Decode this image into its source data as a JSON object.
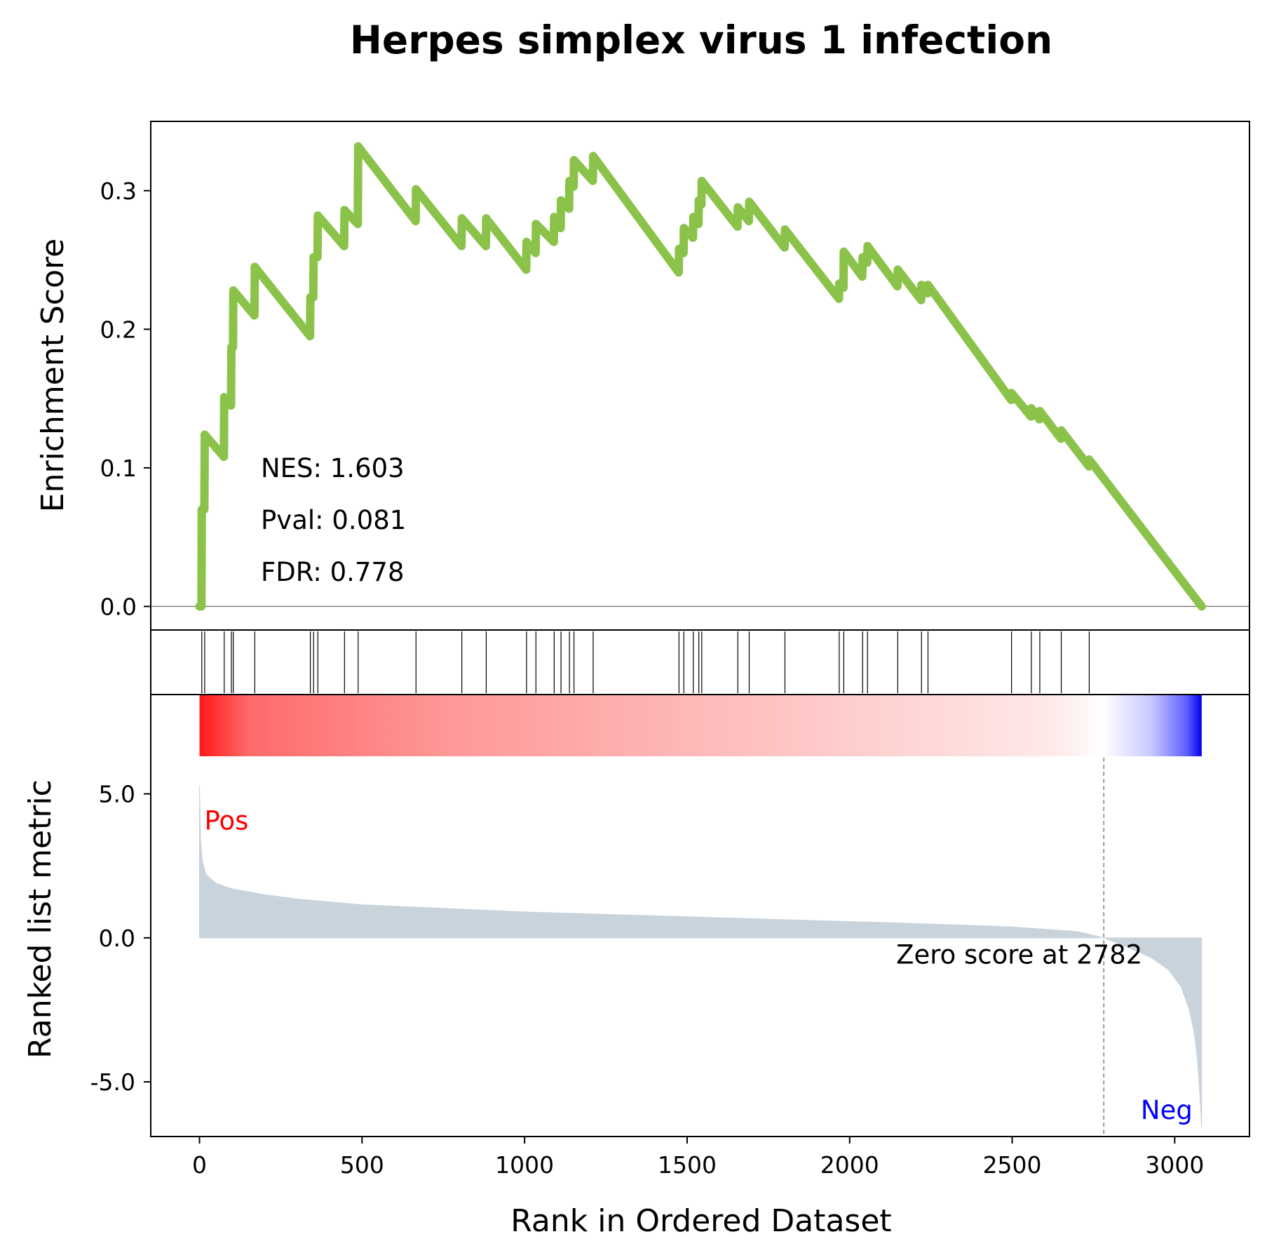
{
  "chart_data": {
    "type": "line",
    "title": "Herpes simplex virus 1 infection",
    "xlabel": "Rank in Ordered Dataset",
    "xlim": [
      -150,
      3230
    ],
    "xticks": [
      0,
      500,
      1000,
      1500,
      2000,
      2500,
      3000
    ],
    "xtick_labels": [
      "0",
      "500",
      "1000",
      "1500",
      "2000",
      "2500",
      "3000"
    ],
    "panels": {
      "enrichment": {
        "ylabel": "Enrichment Score",
        "ylim": [
          -0.017,
          0.35
        ],
        "yticks": [
          0.0,
          0.1,
          0.2,
          0.3
        ],
        "ytick_labels": [
          "0.0",
          "0.1",
          "0.2",
          "0.3"
        ],
        "zero_line": true,
        "line_color": "#8bc34a",
        "stats": [
          {
            "key": "nes",
            "text": "NES: 1.603"
          },
          {
            "key": "pval",
            "text": "Pval: 0.081"
          },
          {
            "key": "fdr",
            "text": "FDR: 0.778"
          }
        ],
        "running_es": [
          [
            0,
            0.0
          ],
          [
            6,
            0.0
          ],
          [
            7,
            0.07
          ],
          [
            15,
            0.07
          ],
          [
            16,
            0.124
          ],
          [
            75,
            0.108
          ],
          [
            76,
            0.151
          ],
          [
            97,
            0.145
          ],
          [
            98,
            0.187
          ],
          [
            103,
            0.187
          ],
          [
            104,
            0.228
          ],
          [
            169,
            0.21
          ],
          [
            170,
            0.245
          ],
          [
            340,
            0.195
          ],
          [
            341,
            0.223
          ],
          [
            350,
            0.223
          ],
          [
            351,
            0.252
          ],
          [
            363,
            0.252
          ],
          [
            364,
            0.282
          ],
          [
            445,
            0.26
          ],
          [
            446,
            0.286
          ],
          [
            487,
            0.276
          ],
          [
            488,
            0.332
          ],
          [
            665,
            0.278
          ],
          [
            666,
            0.301
          ],
          [
            806,
            0.26
          ],
          [
            807,
            0.28
          ],
          [
            881,
            0.26
          ],
          [
            882,
            0.28
          ],
          [
            1005,
            0.243
          ],
          [
            1006,
            0.263
          ],
          [
            1034,
            0.255
          ],
          [
            1035,
            0.276
          ],
          [
            1090,
            0.263
          ],
          [
            1091,
            0.281
          ],
          [
            1111,
            0.273
          ],
          [
            1112,
            0.293
          ],
          [
            1137,
            0.287
          ],
          [
            1138,
            0.307
          ],
          [
            1151,
            0.303
          ],
          [
            1152,
            0.322
          ],
          [
            1210,
            0.307
          ],
          [
            1211,
            0.325
          ],
          [
            1474,
            0.241
          ],
          [
            1475,
            0.258
          ],
          [
            1489,
            0.255
          ],
          [
            1490,
            0.273
          ],
          [
            1518,
            0.266
          ],
          [
            1519,
            0.281
          ],
          [
            1535,
            0.276
          ],
          [
            1536,
            0.293
          ],
          [
            1544,
            0.29
          ],
          [
            1545,
            0.307
          ],
          [
            1655,
            0.274
          ],
          [
            1656,
            0.288
          ],
          [
            1690,
            0.278
          ],
          [
            1691,
            0.292
          ],
          [
            1800,
            0.259
          ],
          [
            1801,
            0.272
          ],
          [
            1967,
            0.222
          ],
          [
            1968,
            0.233
          ],
          [
            1981,
            0.23
          ],
          [
            1982,
            0.256
          ],
          [
            2039,
            0.238
          ],
          [
            2040,
            0.252
          ],
          [
            2054,
            0.248
          ],
          [
            2055,
            0.26
          ],
          [
            2147,
            0.231
          ],
          [
            2148,
            0.243
          ],
          [
            2220,
            0.221
          ],
          [
            2221,
            0.232
          ],
          [
            2240,
            0.226
          ],
          [
            2241,
            0.232
          ],
          [
            2497,
            0.149
          ],
          [
            2498,
            0.154
          ],
          [
            2558,
            0.137
          ],
          [
            2559,
            0.143
          ],
          [
            2584,
            0.135
          ],
          [
            2585,
            0.141
          ],
          [
            2650,
            0.121
          ],
          [
            2651,
            0.127
          ],
          [
            2736,
            0.101
          ],
          [
            2737,
            0.106
          ],
          [
            3083,
            0.0
          ]
        ]
      },
      "hits": {
        "positions": [
          7,
          16,
          76,
          98,
          104,
          170,
          341,
          351,
          364,
          446,
          488,
          666,
          807,
          882,
          1006,
          1035,
          1091,
          1112,
          1138,
          1152,
          1211,
          1475,
          1490,
          1519,
          1536,
          1545,
          1656,
          1691,
          1801,
          1968,
          1982,
          2040,
          2055,
          2148,
          2221,
          2241,
          2498,
          2559,
          2585,
          2651,
          2737
        ]
      },
      "ranked_metric": {
        "ylabel": "Ranked list metric",
        "ylim": [
          -6.9,
          8.45
        ],
        "yticks": [
          5.0,
          0.0,
          -5.0
        ],
        "ytick_labels": [
          "5.0",
          "0.0",
          "-5.0"
        ],
        "fill_color": "#c8d3dc",
        "zero_cross": 2782,
        "zero_cross_label": "Zero score at 2782",
        "pos_label": "Pos",
        "neg_label": "Neg",
        "pos_color": "#ff0000",
        "neg_color": "#0000ff",
        "n_genes": 3083,
        "metric_curve": [
          [
            0,
            5.3
          ],
          [
            3,
            3.5
          ],
          [
            8,
            2.7
          ],
          [
            20,
            2.2
          ],
          [
            50,
            1.9
          ],
          [
            100,
            1.7
          ],
          [
            200,
            1.5
          ],
          [
            300,
            1.35
          ],
          [
            500,
            1.15
          ],
          [
            700,
            1.05
          ],
          [
            1000,
            0.9
          ],
          [
            1300,
            0.8
          ],
          [
            1600,
            0.7
          ],
          [
            1900,
            0.6
          ],
          [
            2200,
            0.5
          ],
          [
            2500,
            0.38
          ],
          [
            2700,
            0.22
          ],
          [
            2782,
            0.0
          ],
          [
            2850,
            -0.3
          ],
          [
            2930,
            -0.7
          ],
          [
            2980,
            -1.1
          ],
          [
            3020,
            -1.7
          ],
          [
            3045,
            -2.5
          ],
          [
            3060,
            -3.3
          ],
          [
            3070,
            -4.2
          ],
          [
            3076,
            -5.2
          ],
          [
            3080,
            -6.0
          ],
          [
            3083,
            -6.6
          ]
        ]
      }
    }
  }
}
